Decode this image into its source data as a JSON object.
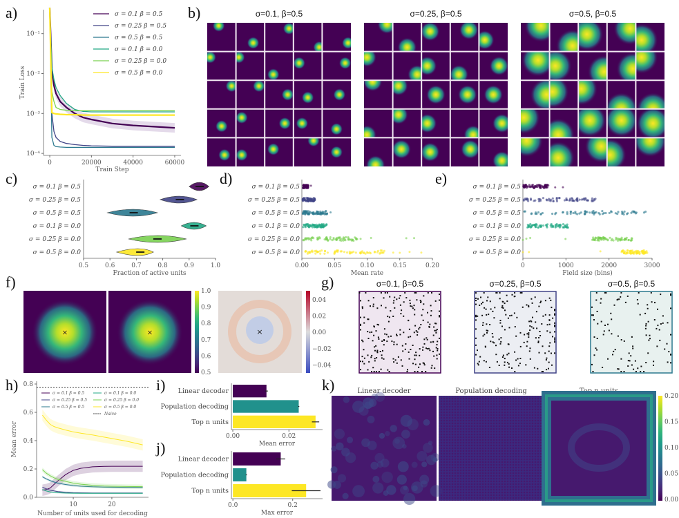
{
  "panel_labels": [
    "a)",
    "b)",
    "c)",
    "d)",
    "e)",
    "f)",
    "g)",
    "h)",
    "i)",
    "j)",
    "k)"
  ],
  "conditions": [
    {
      "label": "σ = 0.1   β = 0.5",
      "color": "#440154"
    },
    {
      "label": "σ = 0.25 β = 0.5",
      "color": "#414487"
    },
    {
      "label": "σ = 0.5   β = 0.5",
      "color": "#2a788e"
    },
    {
      "label": "σ = 0.1   β = 0.0",
      "color": "#22a884"
    },
    {
      "label": "σ = 0.25 β = 0.0",
      "color": "#7ad151"
    },
    {
      "label": "σ = 0.5   β = 0.0",
      "color": "#fde725"
    }
  ],
  "chart_data": [
    {
      "id": "a",
      "type": "line",
      "xlabel": "Train Step",
      "ylabel": "Train Loss",
      "xlim": [
        -3000,
        63000
      ],
      "ylog": true,
      "ylim_exp": [
        -4.05,
        -0.4
      ],
      "xticks": [
        0,
        20000,
        40000,
        60000
      ],
      "yticks": [
        {
          "v": -1,
          "t": "10⁻¹"
        },
        {
          "v": -2,
          "t": "10⁻²"
        },
        {
          "v": -3,
          "t": "10⁻³"
        },
        {
          "v": -4,
          "t": "10⁻⁴"
        }
      ],
      "x": [
        0,
        1000,
        2000,
        3000,
        5000,
        8000,
        12000,
        16000,
        20000,
        30000,
        40000,
        50000,
        60000
      ],
      "series": [
        {
          "name": "σ = 0.1 β = 0.5",
          "log10": [
            -0.35,
            -1.9,
            -2.3,
            -2.5,
            -2.7,
            -2.85,
            -3.0,
            -3.1,
            -3.15,
            -3.25,
            -3.3,
            -3.33,
            -3.36
          ]
        },
        {
          "name": "σ = 0.25 β = 0.5",
          "log10": [
            -0.35,
            -3.0,
            -3.45,
            -3.6,
            -3.7,
            -3.75,
            -3.78,
            -3.8,
            -3.81,
            -3.82,
            -3.82,
            -3.82,
            -3.82
          ]
        },
        {
          "name": "σ = 0.5 β = 0.5",
          "log10": [
            -0.35,
            -3.6,
            -3.8,
            -3.83,
            -3.84,
            -3.85,
            -3.85,
            -3.85,
            -3.85,
            -3.85,
            -3.85,
            -3.85,
            -3.85
          ]
        },
        {
          "name": "σ = 0.1 β = 0.0",
          "log10": [
            -0.35,
            -1.85,
            -2.15,
            -2.35,
            -2.55,
            -2.75,
            -2.9,
            -2.95,
            -2.96,
            -2.96,
            -2.96,
            -2.96,
            -2.96
          ]
        },
        {
          "name": "σ = 0.25 β = 0.0",
          "log10": [
            -0.35,
            -2.45,
            -2.7,
            -2.85,
            -2.9,
            -2.92,
            -2.93,
            -2.93,
            -2.93,
            -2.93,
            -2.93,
            -2.93,
            -2.93
          ]
        },
        {
          "name": "σ = 0.5 β = 0.0",
          "log10": [
            -0.35,
            -2.98,
            -3.0,
            -3.01,
            -3.02,
            -3.03,
            -3.03,
            -3.04,
            -3.04,
            -3.04,
            -3.04,
            -3.04,
            -3.04
          ]
        }
      ]
    },
    {
      "id": "b",
      "type": "heatmap",
      "titles": [
        "σ=0.1, β=0.5",
        "σ=0.25, β=0.5",
        "σ=0.5, β=0.5"
      ],
      "grid": "5x5",
      "blobs": [
        [
          [
            0.4,
            0.1
          ],
          [
            0.6,
            0.7
          ],
          [
            0.85,
            0.2
          ],
          [
            0.9,
            0.85
          ],
          [
            0.9,
            0.7
          ],
          [
            0.1,
            0.2
          ],
          [
            0.1,
            0.2
          ],
          [
            0.3,
            0.8
          ],
          [
            0.2,
            0.4
          ],
          [
            0.8,
            0.4
          ],
          [
            0.85,
            0.2
          ],
          [
            0.8,
            0.2
          ],
          [
            0.8,
            0.5
          ],
          [
            0.5,
            0.6
          ],
          [
            0.6,
            0.5
          ],
          [
            0.5,
            0.6
          ],
          [
            0.2,
            0.3
          ],
          [
            0.7,
            0.5
          ],
          [
            0.3,
            0.5
          ],
          [
            0.5,
            0.7
          ],
          [
            0.6,
            0.6
          ],
          [
            0.2,
            0.6
          ],
          [
            0.3,
            0.4
          ],
          [
            0.7,
            0.1
          ],
          [
            0.5,
            0.5
          ]
        ],
        [
          [
            0.8,
            0.05
          ],
          [
            0.5,
            0.85
          ],
          [
            0.3,
            0.3
          ],
          [
            0.65,
            0.25
          ],
          [
            0.2,
            0.6
          ],
          [
            0.1,
            0.2
          ],
          [
            0.85,
            0.8
          ],
          [
            0.2,
            0.5
          ],
          [
            0.3,
            0.8
          ],
          [
            0.7,
            0.5
          ],
          [
            0.3,
            0.05
          ],
          [
            0.2,
            0.2
          ],
          [
            0.5,
            0.5
          ],
          [
            0.6,
            0.5
          ],
          [
            0.5,
            0.5
          ],
          [
            0.1,
            0.9
          ],
          [
            0.2,
            0.2
          ],
          [
            0.2,
            0.5
          ],
          [
            0.8,
            0.9
          ],
          [
            0.8,
            0.5
          ],
          [
            0.4,
            0.95
          ],
          [
            0.3,
            0.4
          ],
          [
            0.3,
            0.5
          ],
          [
            0.7,
            0.4
          ],
          [
            0.8,
            0.8
          ]
        ],
        [
          [
            0.7,
            0.1
          ],
          [
            0.8,
            0.8
          ],
          [
            0.3,
            0.4
          ],
          [
            0.8,
            0.2
          ],
          [
            0.2,
            0.6
          ],
          [
            0.6,
            0.3
          ],
          [
            0.2,
            0.5
          ],
          [
            0.9,
            0.7
          ],
          [
            0.9,
            0.6
          ],
          [
            0.2,
            0.2
          ],
          [
            0.9,
            0.5
          ],
          [
            0.1,
            0.4
          ],
          [
            0.1,
            0.3
          ],
          [
            0.5,
            1.0
          ],
          [
            0.6,
            1.0
          ],
          [
            0.1,
            0.3
          ],
          [
            0.3,
            0.9
          ],
          [
            0.4,
            0.4
          ],
          [
            0.5,
            0.4
          ],
          [
            0.6,
            0.5
          ],
          [
            0.2,
            0.1
          ],
          [
            0.3,
            0.7
          ],
          [
            0.8,
            0.3
          ],
          [
            0.1,
            0.6
          ],
          [
            0.5,
            0.1
          ]
        ]
      ]
    },
    {
      "id": "c",
      "type": "violin",
      "xlabel": "Fraction of active units",
      "xlim": [
        0.5,
        1.0
      ],
      "xticks": [
        0.5,
        0.6,
        0.7,
        0.8,
        0.9,
        1.0
      ],
      "violins": [
        {
          "median": 0.94,
          "min": 0.9,
          "max": 0.975
        },
        {
          "median": 0.865,
          "min": 0.79,
          "max": 0.93
        },
        {
          "median": 0.69,
          "min": 0.59,
          "max": 0.78
        },
        {
          "median": 0.92,
          "min": 0.87,
          "max": 0.965
        },
        {
          "median": 0.78,
          "min": 0.67,
          "max": 0.89
        },
        {
          "median": 0.715,
          "min": 0.625,
          "max": 0.765
        }
      ]
    },
    {
      "id": "d",
      "type": "scatter",
      "xlabel": "Mean rate",
      "xlim": [
        0.0,
        0.2
      ],
      "xticks": [
        "0.00",
        "0.05",
        "0.10",
        "0.15",
        "0.20"
      ],
      "ranges": [
        {
          "min": 0.002,
          "max": 0.01,
          "outliers": [
            0.014
          ]
        },
        {
          "min": 0.001,
          "max": 0.02,
          "outliers": []
        },
        {
          "min": 0.001,
          "max": 0.04,
          "outliers": [
            0.044
          ]
        },
        {
          "min": 0.002,
          "max": 0.038,
          "outliers": []
        },
        {
          "min": 0.001,
          "max": 0.085,
          "outliers": [
            0.09,
            0.106,
            0.16,
            0.172
          ]
        },
        {
          "min": 0.005,
          "max": 0.13,
          "outliers": [
            0.14,
            0.15,
            0.165,
            0.183
          ]
        }
      ]
    },
    {
      "id": "e",
      "type": "scatter",
      "xlabel": "Field size (bins)",
      "xlim": [
        0,
        3000
      ],
      "xticks": [
        "0",
        "1000",
        "2000",
        "3000"
      ],
      "ranges": [
        {
          "min": 10,
          "max": 600,
          "outliers": [
            750,
            930
          ]
        },
        {
          "min": 20,
          "max": 1700,
          "outliers": []
        },
        {
          "min": 0,
          "max": 2900,
          "outliers": []
        },
        {
          "min": 100,
          "max": 1050,
          "outliers": []
        },
        {
          "min": 1600,
          "max": 2550,
          "outliers": [
            0,
            80,
            170,
            990
          ]
        },
        {
          "min": 2250,
          "max": 2900,
          "outliers": [
            0,
            140,
            1800
          ]
        }
      ]
    },
    {
      "id": "f",
      "type": "heatmap",
      "colorbar1": {
        "min": 0.5,
        "max": 1.0,
        "ticks": [
          "1.0",
          "0.9",
          "0.8",
          "0.7",
          "0.6",
          "0.5"
        ]
      },
      "colorbar2": {
        "min": -0.05,
        "max": 0.05,
        "ticks": [
          "0.04",
          "0.02",
          "0.00",
          "−0.02",
          "−0.04"
        ]
      }
    },
    {
      "id": "g",
      "type": "scatter",
      "titles": [
        "σ=0.1, β=0.5",
        "σ=0.25, β=0.5",
        "σ=0.5, β=0.5"
      ],
      "point_counts": [
        230,
        200,
        110
      ],
      "frame_colors": [
        "#440154",
        "#414487",
        "#2a788e"
      ],
      "bg_colors": [
        "#efe6f0",
        "#eceef3",
        "#e8f1ef"
      ]
    },
    {
      "id": "h",
      "type": "line",
      "xlabel": "Number of units used for decoding",
      "ylabel": "Mean error",
      "xlim": [
        0.5,
        29.5
      ],
      "ylim": [
        0,
        0.8
      ],
      "xticks": [
        10,
        20
      ],
      "yticks": [
        "0.0",
        "0.2",
        "0.4",
        "0.6",
        "0.8"
      ],
      "naive": 0.775,
      "x": [
        2,
        3,
        4,
        5,
        6,
        8,
        10,
        12,
        15,
        18,
        20,
        24,
        28
      ],
      "series": [
        {
          "name": "σ = 0.1 β = 0.5",
          "values": [
            0.05,
            0.055,
            0.065,
            0.09,
            0.115,
            0.16,
            0.19,
            0.205,
            0.215,
            0.218,
            0.219,
            0.219,
            0.219
          ],
          "band": 0.04
        },
        {
          "name": "σ = 0.25 β = 0.5",
          "values": [
            0.07,
            0.06,
            0.05,
            0.045,
            0.04,
            0.035,
            0.032,
            0.031,
            0.03,
            0.03,
            0.03,
            0.03,
            0.03
          ],
          "band": 0.005
        },
        {
          "name": "σ = 0.5 β = 0.5",
          "values": [
            0.145,
            0.13,
            0.118,
            0.108,
            0.1,
            0.09,
            0.083,
            0.078,
            0.074,
            0.072,
            0.071,
            0.07,
            0.07
          ],
          "band": 0.008
        },
        {
          "name": "σ = 0.1 β = 0.0",
          "values": [
            0.055,
            0.045,
            0.038,
            0.034,
            0.032,
            0.03,
            0.029,
            0.028,
            0.028,
            0.028,
            0.028,
            0.028,
            0.028
          ],
          "band": 0.005
        },
        {
          "name": "σ = 0.25 β = 0.0",
          "values": [
            0.195,
            0.17,
            0.152,
            0.138,
            0.127,
            0.112,
            0.1,
            0.092,
            0.085,
            0.08,
            0.078,
            0.076,
            0.075
          ],
          "band": 0.015
        },
        {
          "name": "σ = 0.5 β = 0.0",
          "values": [
            0.58,
            0.545,
            0.515,
            0.5,
            0.49,
            0.475,
            0.462,
            0.452,
            0.44,
            0.425,
            0.415,
            0.395,
            0.37
          ],
          "band": 0.04
        },
        {
          "name": "Naive",
          "values": []
        }
      ],
      "legend": [
        "σ = 0.1  β = 0.5",
        "σ = 0.25 β = 0.5",
        "σ = 0.5  β = 0.5",
        "σ = 0.1  β = 0.0",
        "σ = 0.25 β = 0.0",
        "σ = 0.5  β = 0.0",
        "Naive"
      ]
    },
    {
      "id": "i",
      "type": "bar",
      "xlabel": "Mean error",
      "xlim": [
        -0.0005,
        0.032
      ],
      "xticks": [
        "0.00",
        "0.02"
      ],
      "categories": [
        "Linear decoder",
        "Population decoding",
        "Top n units"
      ],
      "values": [
        0.012,
        0.0235,
        0.0295
      ],
      "errors": [
        0.0005,
        0.0002,
        0.0013
      ],
      "colors": [
        "#440154",
        "#21918c",
        "#fde725"
      ]
    },
    {
      "id": "j",
      "type": "bar",
      "xlabel": "Max error",
      "xlim": [
        -0.005,
        0.3
      ],
      "xticks": [
        "0.0",
        "0.2"
      ],
      "categories": [
        "Linear decoder",
        "Population decoding",
        "Top n units"
      ],
      "values": [
        0.16,
        0.045,
        0.245
      ],
      "errors": [
        0.015,
        0.002,
        0.048
      ],
      "colors": [
        "#440154",
        "#21918c",
        "#fde725"
      ]
    },
    {
      "id": "k",
      "type": "heatmap",
      "titles": [
        "Linear decoder",
        "Population decoding",
        "Top n units"
      ],
      "colorbar": {
        "min": 0.0,
        "max": 0.2,
        "ticks": [
          "0.20",
          "0.15",
          "0.10",
          "0.05",
          "0.00"
        ]
      }
    }
  ]
}
